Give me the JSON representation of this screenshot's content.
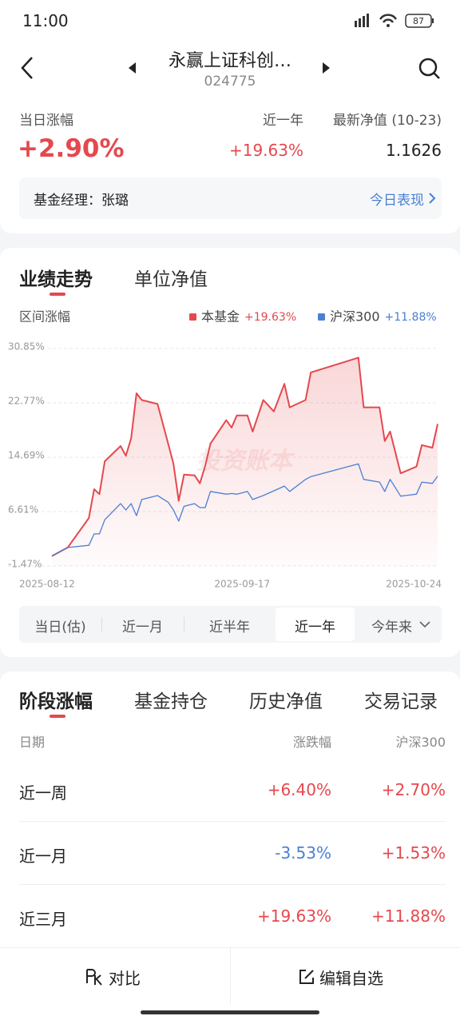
{
  "status_bar": {
    "time": "11:00",
    "battery": "87"
  },
  "header": {
    "title": "永赢上证科创…",
    "code": "024775"
  },
  "summary": {
    "day_change_label": "当日涨幅",
    "day_change": "+2.90%",
    "year_label": "近一年",
    "year_change": "+19.63%",
    "nav_label": "最新净值 (10-23)",
    "nav": "1.1626"
  },
  "manager": {
    "label": "基金经理：张璐",
    "link": "今日表现"
  },
  "chart_tabs": [
    "业绩走势",
    "单位净值"
  ],
  "chart_data": {
    "type": "line",
    "title": "区间涨幅",
    "watermark": "投资账本",
    "x": [
      "2025-08-12",
      "2025-08-15",
      "2025-08-19",
      "2025-08-20",
      "2025-08-21",
      "2025-08-22",
      "2025-08-25",
      "2025-08-26",
      "2025-08-27",
      "2025-08-28",
      "2025-08-29",
      "2025-09-01",
      "2025-09-03",
      "2025-09-04",
      "2025-09-05",
      "2025-09-06",
      "2025-09-08",
      "2025-09-09",
      "2025-09-10",
      "2025-09-11",
      "2025-09-14",
      "2025-09-15",
      "2025-09-16",
      "2025-09-18",
      "2025-09-19",
      "2025-09-21",
      "2025-09-23",
      "2025-09-25",
      "2025-09-26",
      "2025-09-29",
      "2025-09-30",
      "2025-10-09",
      "2025-10-10",
      "2025-10-13",
      "2025-10-14",
      "2025-10-15",
      "2025-10-17",
      "2025-10-20",
      "2025-10-21",
      "2025-10-23",
      "2025-10-24"
    ],
    "series": [
      {
        "name": "本基金",
        "legend_value": "+19.63%",
        "color": "#e5484d",
        "values": [
          0,
          1.27,
          5.66,
          9.94,
          9.2,
          14.1,
          16.35,
          14.9,
          17.5,
          24.2,
          23.2,
          22.6,
          16.7,
          13.7,
          8.2,
          12.1,
          12.0,
          10.8,
          13.4,
          16.7,
          20.2,
          19.1,
          20.9,
          20.9,
          18.5,
          23.2,
          21.5,
          25.6,
          22.1,
          23.2,
          27.3,
          29.5,
          22.1,
          22.1,
          17.1,
          18.5,
          12.3,
          13.3,
          16.5,
          16.1,
          19.63
        ]
      },
      {
        "name": "沪深300",
        "legend_value": "+11.88%",
        "color": "#4a7fd4",
        "values": [
          0,
          1.27,
          1.6,
          3.3,
          3.3,
          5.4,
          7.8,
          6.85,
          7.8,
          6.0,
          8.4,
          9.0,
          8.0,
          6.85,
          5.2,
          7.4,
          7.8,
          7.2,
          7.2,
          9.6,
          9.2,
          9.3,
          9.2,
          9.6,
          8.4,
          9.0,
          9.7,
          10.4,
          9.6,
          11.4,
          11.8,
          13.7,
          11.4,
          11.0,
          9.6,
          11.4,
          8.9,
          9.2,
          11.0,
          10.8,
          11.88
        ]
      }
    ],
    "xlim": [
      "2025-08-12",
      "2025-10-24"
    ],
    "xticks": [
      "2025-08-12",
      "2025-09-17",
      "2025-10-24"
    ],
    "ylim": [
      -1.47,
      30.85
    ],
    "yticks": [
      {
        "value": 30.85,
        "label": "30.85%"
      },
      {
        "value": 22.77,
        "label": "22.77%"
      },
      {
        "value": 14.69,
        "label": "14.69%"
      },
      {
        "value": 6.61,
        "label": "6.61%"
      },
      {
        "value": -1.47,
        "label": "-1.47%"
      }
    ],
    "grid": true
  },
  "range_tabs": {
    "items": [
      "当日(估)",
      "近一月",
      "近半年",
      "近一年",
      "今年来"
    ],
    "selected": 3
  },
  "section_tabs": [
    "阶段涨幅",
    "基金持仓",
    "历史净值",
    "交易记录"
  ],
  "table": {
    "header": [
      "日期",
      "涨跌幅",
      "沪深300"
    ],
    "rows": [
      [
        "近一周",
        "+6.40%",
        "+2.70%"
      ],
      [
        "近一月",
        "-3.53%",
        "+1.53%"
      ],
      [
        "近三月",
        "+19.63%",
        "+11.88%"
      ]
    ]
  },
  "bottom_bar": {
    "compare": "对比",
    "watch": "编辑自选"
  }
}
